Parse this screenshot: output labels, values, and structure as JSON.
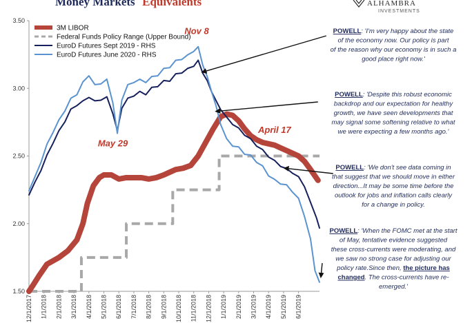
{
  "title": {
    "part1": "Money Markets",
    "part2": "Equivalents"
  },
  "logo": {
    "name": "ALHAMBRA",
    "sub": "INVESTMENTS"
  },
  "chart_data": {
    "type": "line",
    "ylim": [
      1.5,
      3.5
    ],
    "y_ticks": [
      "1.50",
      "2.00",
      "2.50",
      "3.00",
      "3.50"
    ],
    "x_tick_labels": [
      "12/1/2017",
      "1/1/2018",
      "2/1/2018",
      "3/1/2018",
      "4/1/2018",
      "5/1/2018",
      "6/1/2018",
      "7/1/2018",
      "8/1/2018",
      "9/1/2018",
      "10/1/2018",
      "11/1/2018",
      "12/1/2018",
      "1/1/2019",
      "2/1/2019",
      "3/1/2019",
      "4/1/2019",
      "5/1/2019",
      "6/1/2019"
    ],
    "x_range": [
      0,
      19.4
    ],
    "series": [
      {
        "name": "3M LIBOR",
        "color": "#b5443a",
        "style": "thick",
        "points": [
          [
            0,
            1.5
          ],
          [
            0.3,
            1.55
          ],
          [
            0.7,
            1.62
          ],
          [
            1.2,
            1.7
          ],
          [
            2,
            1.75
          ],
          [
            2.6,
            1.8
          ],
          [
            3.2,
            1.88
          ],
          [
            3.6,
            2.0
          ],
          [
            3.9,
            2.15
          ],
          [
            4.3,
            2.28
          ],
          [
            4.7,
            2.34
          ],
          [
            5.0,
            2.36
          ],
          [
            5.5,
            2.36
          ],
          [
            6.0,
            2.33
          ],
          [
            6.5,
            2.34
          ],
          [
            7.0,
            2.34
          ],
          [
            7.5,
            2.34
          ],
          [
            8.0,
            2.33
          ],
          [
            8.5,
            2.34
          ],
          [
            9.0,
            2.36
          ],
          [
            9.4,
            2.38
          ],
          [
            9.8,
            2.4
          ],
          [
            10.3,
            2.41
          ],
          [
            10.8,
            2.43
          ],
          [
            11.3,
            2.5
          ],
          [
            11.8,
            2.6
          ],
          [
            12.3,
            2.7
          ],
          [
            12.8,
            2.79
          ],
          [
            13.2,
            2.81
          ],
          [
            13.6,
            2.8
          ],
          [
            14.0,
            2.76
          ],
          [
            14.4,
            2.7
          ],
          [
            14.8,
            2.65
          ],
          [
            15.2,
            2.62
          ],
          [
            15.6,
            2.6
          ],
          [
            16.0,
            2.59
          ],
          [
            16.4,
            2.58
          ],
          [
            16.8,
            2.56
          ],
          [
            17.2,
            2.54
          ],
          [
            17.6,
            2.52
          ],
          [
            18.0,
            2.5
          ],
          [
            18.4,
            2.46
          ],
          [
            18.8,
            2.4
          ],
          [
            19.3,
            2.32
          ]
        ]
      },
      {
        "name": "Federal Funds Policy Range (Upper Bound)",
        "color": "#a8a8a8",
        "style": "dashed",
        "steps": [
          [
            0,
            1.5
          ],
          [
            3.5,
            1.75
          ],
          [
            6.5,
            2.0
          ],
          [
            9.6,
            2.25
          ],
          [
            12.7,
            2.5
          ],
          [
            19.4,
            2.5
          ]
        ]
      },
      {
        "name": "EuroD Futures Sept 2019 - RHS",
        "color": "#16205c",
        "style": "solid",
        "points": [
          [
            0,
            2.22
          ],
          [
            0.4,
            2.3
          ],
          [
            0.8,
            2.4
          ],
          [
            1.2,
            2.5
          ],
          [
            1.6,
            2.6
          ],
          [
            2.0,
            2.68
          ],
          [
            2.4,
            2.76
          ],
          [
            2.8,
            2.84
          ],
          [
            3.2,
            2.88
          ],
          [
            3.6,
            2.9
          ],
          [
            4.0,
            2.94
          ],
          [
            4.4,
            2.9
          ],
          [
            4.8,
            2.92
          ],
          [
            5.2,
            2.93
          ],
          [
            5.6,
            2.82
          ],
          [
            5.9,
            2.68
          ],
          [
            6.2,
            2.86
          ],
          [
            6.6,
            2.92
          ],
          [
            7.0,
            2.95
          ],
          [
            7.4,
            2.97
          ],
          [
            7.8,
            2.96
          ],
          [
            8.2,
            3.0
          ],
          [
            8.6,
            3.02
          ],
          [
            9.0,
            3.05
          ],
          [
            9.4,
            3.06
          ],
          [
            9.8,
            3.1
          ],
          [
            10.2,
            3.12
          ],
          [
            10.6,
            3.14
          ],
          [
            11.0,
            3.17
          ],
          [
            11.3,
            3.2
          ],
          [
            11.6,
            3.12
          ],
          [
            11.9,
            3.05
          ],
          [
            12.2,
            2.98
          ],
          [
            12.5,
            2.9
          ],
          [
            12.8,
            2.85
          ],
          [
            13.2,
            2.78
          ],
          [
            13.6,
            2.74
          ],
          [
            14.0,
            2.7
          ],
          [
            14.4,
            2.66
          ],
          [
            14.8,
            2.62
          ],
          [
            15.2,
            2.58
          ],
          [
            15.6,
            2.54
          ],
          [
            16.0,
            2.5
          ],
          [
            16.4,
            2.46
          ],
          [
            16.8,
            2.43
          ],
          [
            17.2,
            2.4
          ],
          [
            17.6,
            2.38
          ],
          [
            18.0,
            2.34
          ],
          [
            18.4,
            2.28
          ],
          [
            18.8,
            2.15
          ],
          [
            19.2,
            2.05
          ],
          [
            19.4,
            1.96
          ]
        ]
      },
      {
        "name": "EuroD Futures June 2020 - RHS",
        "color": "#5a93cf",
        "style": "solid",
        "points": [
          [
            0,
            2.25
          ],
          [
            0.4,
            2.34
          ],
          [
            0.8,
            2.46
          ],
          [
            1.2,
            2.58
          ],
          [
            1.6,
            2.68
          ],
          [
            2.0,
            2.76
          ],
          [
            2.4,
            2.84
          ],
          [
            2.8,
            2.92
          ],
          [
            3.2,
            2.96
          ],
          [
            3.6,
            3.04
          ],
          [
            4.0,
            3.1
          ],
          [
            4.4,
            3.02
          ],
          [
            4.8,
            3.04
          ],
          [
            5.2,
            3.06
          ],
          [
            5.6,
            2.9
          ],
          [
            5.9,
            2.66
          ],
          [
            6.2,
            2.92
          ],
          [
            6.6,
            3.02
          ],
          [
            7.0,
            3.05
          ],
          [
            7.4,
            3.06
          ],
          [
            7.8,
            3.05
          ],
          [
            8.2,
            3.08
          ],
          [
            8.6,
            3.1
          ],
          [
            9.0,
            3.14
          ],
          [
            9.4,
            3.16
          ],
          [
            9.8,
            3.2
          ],
          [
            10.2,
            3.22
          ],
          [
            10.6,
            3.24
          ],
          [
            11.0,
            3.28
          ],
          [
            11.3,
            3.3
          ],
          [
            11.6,
            3.18
          ],
          [
            11.9,
            3.08
          ],
          [
            12.2,
            2.98
          ],
          [
            12.5,
            2.86
          ],
          [
            12.8,
            2.74
          ],
          [
            13.2,
            2.62
          ],
          [
            13.6,
            2.58
          ],
          [
            14.0,
            2.56
          ],
          [
            14.4,
            2.52
          ],
          [
            14.8,
            2.5
          ],
          [
            15.2,
            2.46
          ],
          [
            15.6,
            2.42
          ],
          [
            16.0,
            2.36
          ],
          [
            16.4,
            2.32
          ],
          [
            16.8,
            2.3
          ],
          [
            17.2,
            2.28
          ],
          [
            17.6,
            2.24
          ],
          [
            18.0,
            2.18
          ],
          [
            18.4,
            2.06
          ],
          [
            18.8,
            1.88
          ],
          [
            19.1,
            1.66
          ],
          [
            19.4,
            1.56
          ]
        ]
      }
    ],
    "annotations": [
      {
        "text": "Nov 8",
        "x": 11.2,
        "y": 3.4
      },
      {
        "text": "May 29",
        "x": 5.6,
        "y": 2.57
      },
      {
        "text": "April 17",
        "x": 16.4,
        "y": 2.67
      }
    ]
  },
  "quotes": [
    {
      "lines": [
        [
          "POWELL",
          ": 'I'm very happy about the state"
        ],
        [
          "of the economy now. Our policy is part"
        ],
        [
          "of the reason why our economy is in such a"
        ],
        [
          "good place right now.'"
        ]
      ]
    },
    {
      "lines": [
        [
          "POWELL",
          ": 'Despite this robust economic"
        ],
        [
          "backdrop and our expectation for healthy"
        ],
        [
          "growth, we have seen developments that"
        ],
        [
          "may signal some softening relative to what"
        ],
        [
          "we were expecting a few months ago.'"
        ]
      ]
    },
    {
      "lines": [
        [
          "POWELL",
          ": 'We don't see data coming in"
        ],
        [
          "that suggest that we should move in either"
        ],
        [
          "direction...It may be some time before the"
        ],
        [
          "outlook for jobs and inflation calls clearly"
        ],
        [
          "for a change in policy."
        ]
      ]
    },
    {
      "lines": [
        [
          "POWELL",
          ": 'When the FOMC met at the start"
        ],
        [
          "of May, tentative evidence suggested"
        ],
        [
          "these cross-currents were moderating, and"
        ],
        [
          "we saw no strong case for adjusting our"
        ],
        [
          "policy rate.Since then, ",
          "the picture has"
        ],
        [
          "changed",
          ". The cross-currents have re-"
        ],
        [
          "emerged.'"
        ]
      ]
    }
  ]
}
